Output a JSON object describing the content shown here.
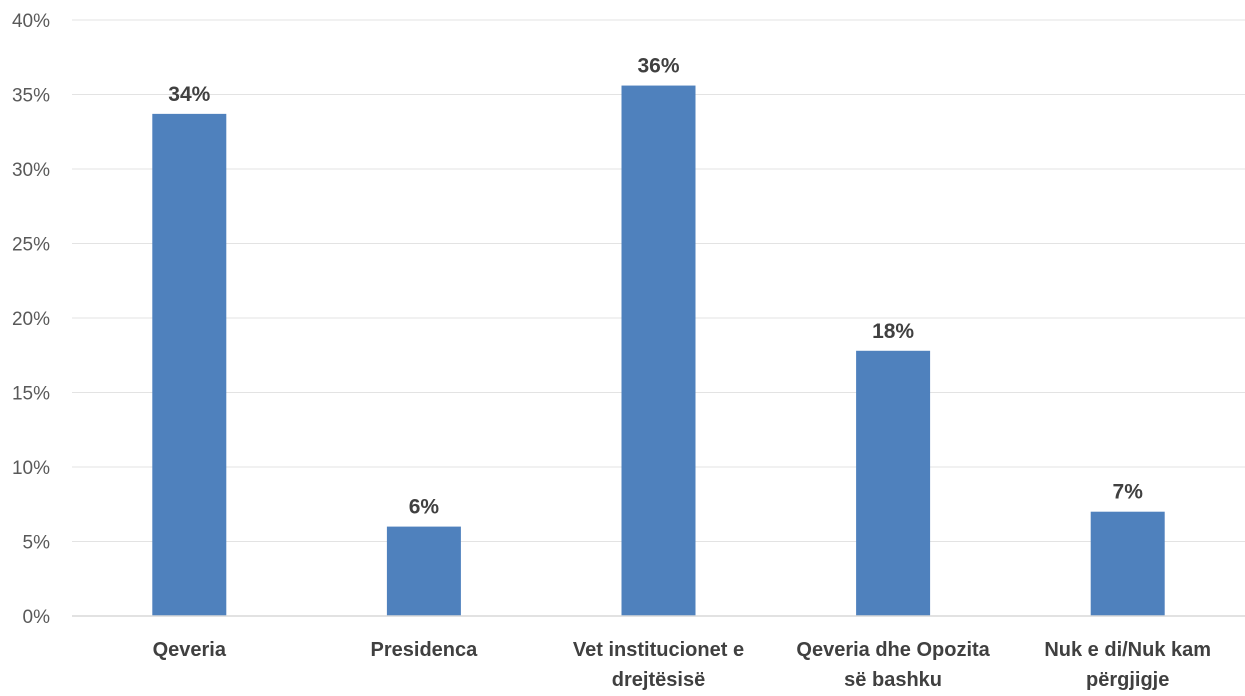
{
  "chart_data": {
    "type": "bar",
    "title": "",
    "xlabel": "",
    "ylabel": "",
    "categories": [
      [
        "Qeveria"
      ],
      [
        "Presidenca"
      ],
      [
        "Vet institucionet e",
        "drejtësisë"
      ],
      [
        "Qeveria dhe Opozita",
        "së bashku"
      ],
      [
        "Nuk e di/Nuk kam",
        "përgjigje"
      ]
    ],
    "values": [
      33.7,
      6.0,
      35.6,
      17.8,
      7.0
    ],
    "data_labels": [
      "34%",
      "6%",
      "36%",
      "18%",
      "7%"
    ],
    "ylim": [
      0,
      40
    ],
    "yticks": [
      0,
      5,
      10,
      15,
      20,
      25,
      30,
      35,
      40
    ],
    "ytick_labels": [
      "0%",
      "5%",
      "10%",
      "15%",
      "20%",
      "25%",
      "30%",
      "35%",
      "40%"
    ],
    "bar_color": "#4f81bd",
    "grid": true,
    "legend": "none"
  }
}
